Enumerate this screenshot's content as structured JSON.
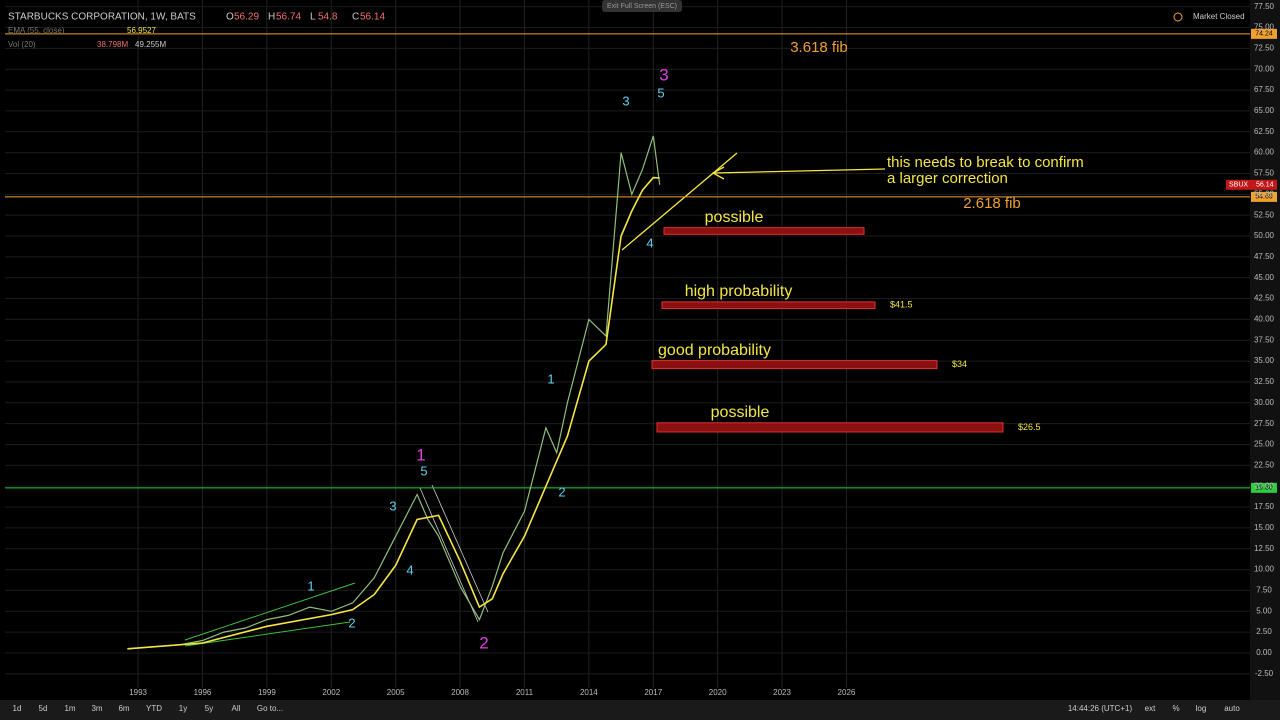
{
  "header": {
    "symbol": "STARBUCKS CORPORATION, 1W, BATS",
    "ohlc": [
      {
        "key": "O",
        "value": 56.29
      },
      {
        "key": "H",
        "value": 56.74
      },
      {
        "key": "L",
        "value": 54.8
      },
      {
        "key": "C",
        "value": 56.14
      }
    ],
    "ema": {
      "name": "EMA (55, close)",
      "value": 56.9527
    },
    "vol": {
      "name": "Vol (20)",
      "values": [
        "38.798M",
        "49.255M"
      ]
    },
    "exit": "Exit Full Screen (ESC)",
    "status": "Market Closed",
    "ticker": "SBUX"
  },
  "chart_data": {
    "type": "line",
    "xlim": [
      1986.8,
      2044.8
    ],
    "ylim": [
      -4.2,
      78.3
    ],
    "xticks": [
      1993,
      1996,
      1999,
      2002,
      2005,
      2008,
      2011,
      2014,
      2017,
      2020,
      2023,
      2026
    ],
    "yticks": [
      {
        "value": -2.5,
        "label": "-2.50"
      },
      {
        "value": 0,
        "label": "0.00"
      },
      {
        "value": 2.5,
        "label": "2.50"
      },
      {
        "value": 5,
        "label": "5.00"
      },
      {
        "value": 7.5,
        "label": "7.50"
      },
      {
        "value": 10,
        "label": "10.00"
      },
      {
        "value": 12.5,
        "label": "12.50"
      },
      {
        "value": 15,
        "label": "15.00"
      },
      {
        "value": 17.5,
        "label": "17.50"
      },
      {
        "value": 20,
        "label": "20.00"
      },
      {
        "value": 22.5,
        "label": "22.50"
      },
      {
        "value": 25,
        "label": "25.00"
      },
      {
        "value": 27.5,
        "label": "27.50"
      },
      {
        "value": 30,
        "label": "30.00"
      },
      {
        "value": 32.5,
        "label": "32.50"
      },
      {
        "value": 35,
        "label": "35.00"
      },
      {
        "value": 37.5,
        "label": "37.50"
      },
      {
        "value": 40,
        "label": "40.00"
      },
      {
        "value": 42.5,
        "label": "42.50"
      },
      {
        "value": 45,
        "label": "45.00"
      },
      {
        "value": 47.5,
        "label": "47.50"
      },
      {
        "value": 50,
        "label": "50.00"
      },
      {
        "value": 52.5,
        "label": "52.50"
      },
      {
        "value": 55,
        "label": "55.00"
      },
      {
        "value": 57.5,
        "label": "57.50"
      },
      {
        "value": 60,
        "label": "60.00"
      },
      {
        "value": 62.5,
        "label": "62.50"
      },
      {
        "value": 65,
        "label": "65.00"
      },
      {
        "value": 67.5,
        "label": "67.50"
      },
      {
        "value": 70,
        "label": "70.00"
      },
      {
        "value": 72.5,
        "label": "72.50"
      },
      {
        "value": 75,
        "label": "75.00"
      },
      {
        "value": 77.5,
        "label": "77.50"
      }
    ],
    "grid": true,
    "series": [
      {
        "color": "#8fbf7a",
        "x": [
          1992.5,
          1995,
          1996,
          1997,
          1998,
          1999,
          2000,
          2001,
          2002,
          2003,
          2004,
          2005,
          2006,
          2006.5,
          2007,
          2008,
          2008.9,
          2009.5,
          2010,
          2011,
          2012,
          2012.5,
          2013,
          2014,
          2014.8,
          2015.5,
          2016,
          2016.5,
          2017,
          2017.3
        ],
        "values": [
          0.5,
          1,
          1.5,
          2.5,
          3,
          4,
          4.5,
          5.5,
          5,
          6,
          9,
          14,
          19,
          16,
          14,
          8,
          4,
          8,
          12,
          17,
          27,
          24,
          30,
          40,
          38,
          60,
          55,
          58,
          62,
          56.14
        ]
      },
      {
        "color": "#f5e642",
        "x": [
          1992.5,
          1996,
          1999,
          2002,
          2003,
          2004,
          2005,
          2006,
          2007,
          2008,
          2008.9,
          2009.5,
          2010,
          2011,
          2012,
          2013,
          2014,
          2014.8,
          2015.5,
          2016,
          2016.5,
          2017,
          2017.3
        ],
        "values": [
          0.5,
          1.2,
          3.2,
          4.6,
          5.2,
          7,
          10.5,
          16,
          16.5,
          11,
          5.5,
          6.5,
          9.5,
          14,
          20,
          26,
          35,
          37,
          50,
          53,
          55.5,
          57,
          56.95
        ]
      }
    ],
    "levels": [
      {
        "value": 74.24,
        "label": "74.24",
        "color": "#f0a030"
      },
      {
        "value": 54.69,
        "label": "54.69",
        "color": "#f0a030"
      },
      {
        "value": 19.8,
        "label": "19.80",
        "color": "#2ecc40"
      }
    ],
    "zones": [
      {
        "label": "possible",
        "top": 51.0,
        "bottom": 50.2
      },
      {
        "label": "high probability",
        "top": 42.1,
        "bottom": 41.3,
        "price_label": "$41.5"
      },
      {
        "label": "good probability",
        "top": 35.06,
        "bottom": 34.1,
        "price_label": "$34"
      },
      {
        "label": "possible",
        "top": 27.6,
        "bottom": 26.5,
        "price_label": "$26.5"
      }
    ],
    "annotations": {
      "fib_upper": "3.618 fib",
      "fib_lower": "2.618 fib",
      "note": [
        "this needs to break to confirm",
        "a larger correction"
      ],
      "major_waves": [
        "1",
        "2",
        "3"
      ],
      "minor_waves": [
        "1",
        "2",
        "3",
        "4",
        "5",
        "1",
        "2",
        "3",
        "4",
        "5"
      ]
    }
  },
  "toolbar": {
    "ranges": [
      "1d",
      "5d",
      "1m",
      "3m",
      "6m",
      "YTD",
      "1y",
      "5y",
      "All",
      "Go to..."
    ],
    "time": "14:44:26 (UTC+1)",
    "options": [
      "ext",
      "%",
      "log",
      "auto"
    ]
  }
}
